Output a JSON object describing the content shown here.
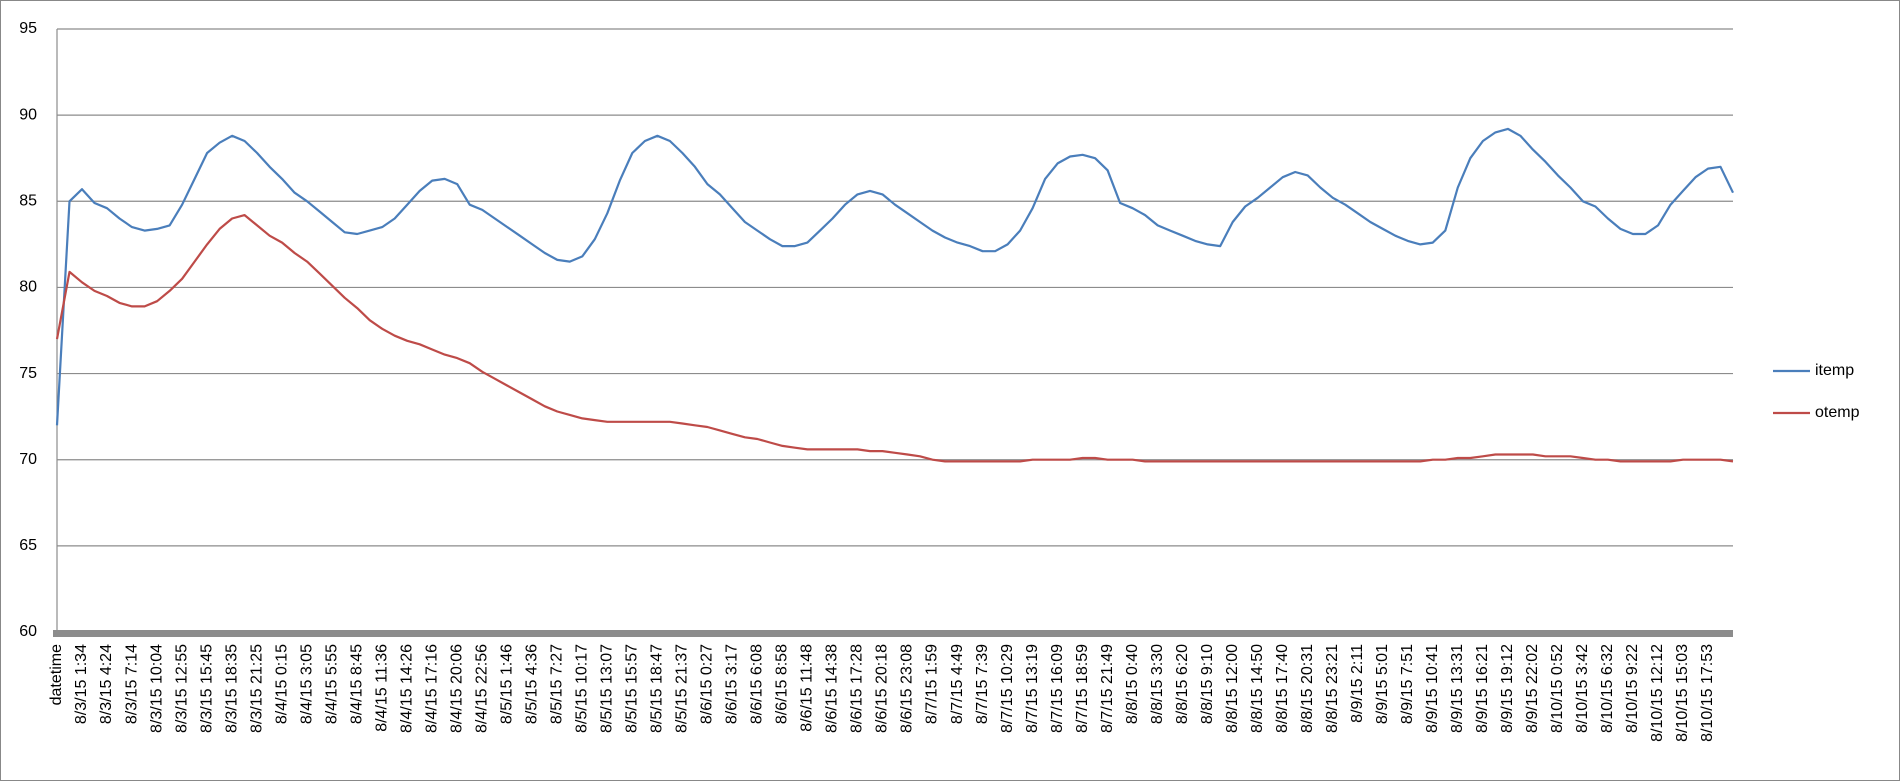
{
  "chart_data": {
    "type": "line",
    "categories": [
      "datetime",
      null,
      "8/3/15 1:34",
      null,
      "8/3/15 4:24",
      null,
      "8/3/15 7:14",
      null,
      "8/3/15 10:04",
      null,
      "8/3/15 12:55",
      null,
      "8/3/15 15:45",
      null,
      "8/3/15 18:35",
      null,
      "8/3/15 21:25",
      null,
      "8/4/15 0:15",
      null,
      "8/4/15 3:05",
      null,
      "8/4/15 5:55",
      null,
      "8/4/15 8:45",
      null,
      "8/4/15 11:36",
      null,
      "8/4/15 14:26",
      null,
      "8/4/15 17:16",
      null,
      "8/4/15 20:06",
      null,
      "8/4/15 22:56",
      null,
      "8/5/15 1:46",
      null,
      "8/5/15 4:36",
      null,
      "8/5/15 7:27",
      null,
      "8/5/15 10:17",
      null,
      "8/5/15 13:07",
      null,
      "8/5/15 15:57",
      null,
      "8/5/15 18:47",
      null,
      "8/5/15 21:37",
      null,
      "8/6/15 0:27",
      null,
      "8/6/15 3:17",
      null,
      "8/6/15 6:08",
      null,
      "8/6/15 8:58",
      null,
      "8/6/15 11:48",
      null,
      "8/6/15 14:38",
      null,
      "8/6/15 17:28",
      null,
      "8/6/15 20:18",
      null,
      "8/6/15 23:08",
      null,
      "8/7/15 1:59",
      null,
      "8/7/15 4:49",
      null,
      "8/7/15 7:39",
      null,
      "8/7/15 10:29",
      null,
      "8/7/15 13:19",
      null,
      "8/7/15 16:09",
      null,
      "8/7/15 18:59",
      null,
      "8/7/15 21:49",
      null,
      "8/8/15 0:40",
      null,
      "8/8/15 3:30",
      null,
      "8/8/15 6:20",
      null,
      "8/8/15 9:10",
      null,
      "8/8/15 12:00",
      null,
      "8/8/15 14:50",
      null,
      "8/8/15 17:40",
      null,
      "8/8/15 20:31",
      null,
      "8/8/15 23:21",
      null,
      "8/9/15 2:11",
      null,
      "8/9/15 5:01",
      null,
      "8/9/15 7:51",
      null,
      "8/9/15 10:41",
      null,
      "8/9/15 13:31",
      null,
      "8/9/15 16:21",
      null,
      "8/9/15 19:12",
      null,
      "8/9/15 22:02",
      null,
      "8/10/15 0:52",
      null,
      "8/10/15 3:42",
      null,
      "8/10/15 6:32",
      null,
      "8/10/15 9:22",
      null,
      "8/10/15 12:12",
      null,
      "8/10/15 15:03",
      null,
      "8/10/15 17:53",
      null,
      null
    ],
    "series": [
      {
        "name": "itemp",
        "color": "#4a7ebb",
        "values": [
          72,
          85.0,
          85.7,
          84.9,
          84.6,
          84.0,
          83.5,
          83.3,
          83.4,
          83.6,
          84.8,
          86.3,
          87.8,
          88.4,
          88.8,
          88.5,
          87.8,
          87.0,
          86.3,
          85.5,
          85.0,
          84.4,
          83.8,
          83.2,
          83.1,
          83.3,
          83.5,
          84.0,
          84.8,
          85.6,
          86.2,
          86.3,
          86.0,
          84.8,
          84.5,
          84.0,
          83.5,
          83.0,
          82.5,
          82.0,
          81.6,
          81.5,
          81.8,
          82.8,
          84.3,
          86.2,
          87.8,
          88.5,
          88.8,
          88.5,
          87.8,
          87.0,
          86.0,
          85.4,
          84.6,
          83.8,
          83.3,
          82.8,
          82.4,
          82.4,
          82.6,
          83.3,
          84.0,
          84.8,
          85.4,
          85.6,
          85.4,
          84.8,
          84.3,
          83.8,
          83.3,
          82.9,
          82.6,
          82.4,
          82.1,
          82.1,
          82.5,
          83.3,
          84.6,
          86.3,
          87.2,
          87.6,
          87.7,
          87.5,
          86.8,
          84.9,
          84.6,
          84.2,
          83.6,
          83.3,
          83.0,
          82.7,
          82.5,
          82.4,
          83.8,
          84.7,
          85.2,
          85.8,
          86.4,
          86.7,
          86.5,
          85.8,
          85.2,
          84.8,
          84.3,
          83.8,
          83.4,
          83.0,
          82.7,
          82.5,
          82.6,
          83.3,
          85.8,
          87.5,
          88.5,
          89.0,
          89.2,
          88.8,
          88.0,
          87.3,
          86.5,
          85.8,
          85.0,
          84.7,
          84.0,
          83.4,
          83.1,
          83.1,
          83.6,
          84.8,
          85.6,
          86.4,
          86.9,
          87.0,
          85.5
        ]
      },
      {
        "name": "otemp",
        "color": "#be4b48",
        "values": [
          77,
          80.9,
          80.3,
          79.8,
          79.5,
          79.1,
          78.9,
          78.9,
          79.2,
          79.8,
          80.5,
          81.5,
          82.5,
          83.4,
          84.0,
          84.2,
          83.6,
          83.0,
          82.6,
          82.0,
          81.5,
          80.8,
          80.1,
          79.4,
          78.8,
          78.1,
          77.6,
          77.2,
          76.9,
          76.7,
          76.4,
          76.1,
          75.9,
          75.6,
          75.1,
          74.7,
          74.3,
          73.9,
          73.5,
          73.1,
          72.8,
          72.6,
          72.4,
          72.3,
          72.2,
          72.2,
          72.2,
          72.2,
          72.2,
          72.2,
          72.1,
          72.0,
          71.9,
          71.7,
          71.5,
          71.3,
          71.2,
          71.0,
          70.8,
          70.7,
          70.6,
          70.6,
          70.6,
          70.6,
          70.6,
          70.5,
          70.5,
          70.4,
          70.3,
          70.2,
          70.0,
          69.9,
          69.9,
          69.9,
          69.9,
          69.9,
          69.9,
          69.9,
          70.0,
          70.0,
          70.0,
          70.0,
          70.1,
          70.1,
          70.0,
          70.0,
          70.0,
          69.9,
          69.9,
          69.9,
          69.9,
          69.9,
          69.9,
          69.9,
          69.9,
          69.9,
          69.9,
          69.9,
          69.9,
          69.9,
          69.9,
          69.9,
          69.9,
          69.9,
          69.9,
          69.9,
          69.9,
          69.9,
          69.9,
          69.9,
          70.0,
          70.0,
          70.1,
          70.1,
          70.2,
          70.3,
          70.3,
          70.3,
          70.3,
          70.2,
          70.2,
          70.2,
          70.1,
          70.0,
          70.0,
          69.9,
          69.9,
          69.9,
          69.9,
          69.9,
          70.0,
          70.0,
          70.0,
          70.0,
          69.9
        ]
      }
    ],
    "ylim": [
      60,
      95
    ],
    "yticks": [
      60,
      65,
      70,
      75,
      80,
      85,
      90,
      95
    ],
    "grid": true,
    "legend": "right"
  }
}
